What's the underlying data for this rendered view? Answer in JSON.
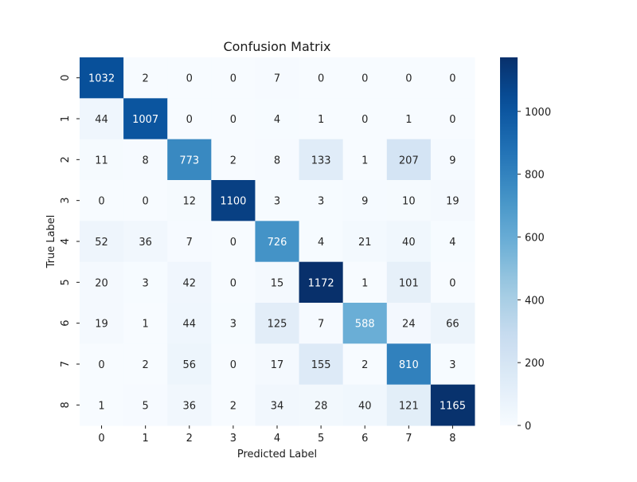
{
  "chart_data": {
    "type": "heatmap",
    "title": "Confusion Matrix",
    "xlabel": "Predicted Label",
    "ylabel": "True Label",
    "x_categories": [
      "0",
      "1",
      "2",
      "3",
      "4",
      "5",
      "6",
      "7",
      "8"
    ],
    "y_categories": [
      "0",
      "1",
      "2",
      "3",
      "4",
      "5",
      "6",
      "7",
      "8"
    ],
    "values": [
      [
        1032,
        2,
        0,
        0,
        7,
        0,
        0,
        0,
        0
      ],
      [
        44,
        1007,
        0,
        0,
        4,
        1,
        0,
        1,
        0
      ],
      [
        11,
        8,
        773,
        2,
        8,
        133,
        1,
        207,
        9
      ],
      [
        0,
        0,
        12,
        1100,
        3,
        3,
        9,
        10,
        19
      ],
      [
        52,
        36,
        7,
        0,
        726,
        4,
        21,
        40,
        4
      ],
      [
        20,
        3,
        42,
        0,
        15,
        1172,
        1,
        101,
        0
      ],
      [
        19,
        1,
        44,
        3,
        125,
        7,
        588,
        24,
        66
      ],
      [
        0,
        2,
        56,
        0,
        17,
        155,
        2,
        810,
        3
      ],
      [
        1,
        5,
        36,
        2,
        34,
        28,
        40,
        121,
        1165
      ]
    ],
    "colormap": "Blues",
    "vmin": 0,
    "vmax": 1172,
    "colorbar_ticks": [
      "0",
      "200",
      "400",
      "600",
      "800",
      "1000"
    ],
    "colorbar_tick_values": [
      0,
      200,
      400,
      600,
      800,
      1000
    ],
    "grid": false
  }
}
